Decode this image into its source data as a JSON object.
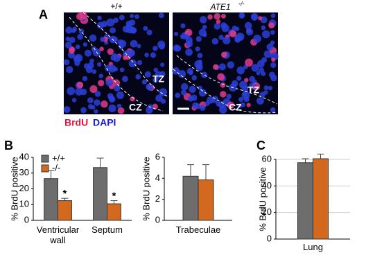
{
  "figure": {
    "panel_a": {
      "letter": "A",
      "wt_label": "+/+",
      "ko_label": "ATE1",
      "ko_superscript": "-/-",
      "tz": "TZ",
      "cz": "CZ",
      "stain_red": "BrdU",
      "stain_blue": "DAPI"
    },
    "panel_b": {
      "letter": "B"
    },
    "panel_c": {
      "letter": "C"
    }
  },
  "chart_data": [
    {
      "type": "bar",
      "ylabel": "% BrdU positive",
      "categories": [
        "Ventricular wall",
        "Septum"
      ],
      "series": [
        {
          "name": "+/+",
          "color": "#6d6d6d",
          "values": [
            26.5,
            33.5
          ],
          "errors": [
            5,
            6
          ]
        },
        {
          "name": "-/-",
          "color": "#d2691e",
          "values": [
            12.5,
            10.5
          ],
          "errors": [
            1.5,
            2
          ]
        }
      ],
      "annotations": [
        {
          "text": "*",
          "series": 1,
          "category": 0
        },
        {
          "text": "*",
          "series": 1,
          "category": 1
        }
      ],
      "ylim": [
        0,
        40
      ],
      "yticks": [
        0,
        10,
        20,
        30,
        40
      ],
      "grid": false,
      "legend": "top-left"
    },
    {
      "type": "bar",
      "ylabel": "% BrdU positive",
      "categories": [
        "Trabeculae"
      ],
      "series": [
        {
          "name": "+/+",
          "color": "#6d6d6d",
          "values": [
            4.2
          ],
          "errors": [
            1.1
          ]
        },
        {
          "name": "-/-",
          "color": "#d2691e",
          "values": [
            3.85
          ],
          "errors": [
            1.45
          ]
        }
      ],
      "ylim": [
        0,
        6
      ],
      "yticks": [
        0,
        2,
        4,
        6
      ],
      "grid": false
    },
    {
      "type": "bar",
      "ylabel": "% BrdU positive",
      "categories": [
        "Lung"
      ],
      "series": [
        {
          "name": "+/+",
          "color": "#6d6d6d",
          "values": [
            57.5
          ],
          "errors": [
            3
          ]
        },
        {
          "name": "-/-",
          "color": "#d2691e",
          "values": [
            60.5
          ],
          "errors": [
            3.5
          ]
        }
      ],
      "ylim": [
        0,
        60
      ],
      "yticks": [
        0,
        20,
        40,
        60
      ],
      "grid": true
    }
  ]
}
